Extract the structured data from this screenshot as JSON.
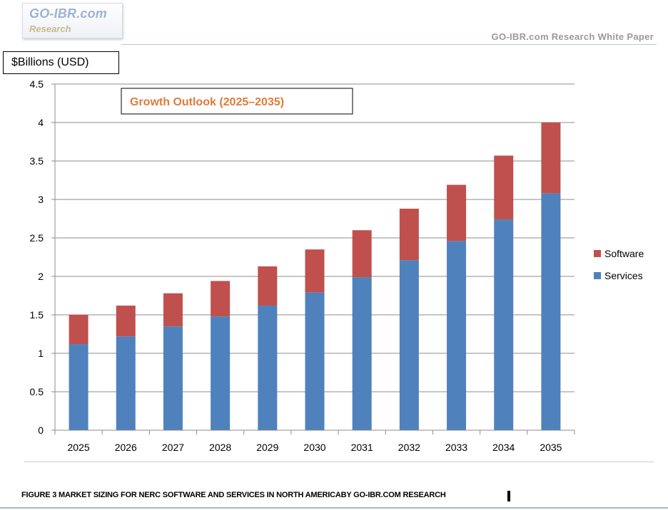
{
  "header": {
    "logo_main": "GO-IBR.com",
    "logo_sub": "Research",
    "right_text": "GO-IBR.com Research White Paper"
  },
  "caption": "FIGURE 3 MARKET SIZING FOR NERC SOFTWARE AND SERVICES IN NORTH AMERICABY GO-IBR.COM RESEARCH",
  "colors": {
    "services": "#4f81bd",
    "software": "#c0504d",
    "title_text": "#e07b39"
  },
  "chart_data": {
    "type": "bar",
    "stacked": true,
    "title": "Growth Outlook (2025–2035)",
    "ylabel": "$Billions (USD)",
    "xlabel": "",
    "ylim": [
      0,
      4.5
    ],
    "ytick_step": 0.5,
    "yticks": [
      "0",
      "0.5",
      "1",
      "1.5",
      "2",
      "2.5",
      "3",
      "3.5",
      "4",
      "4.5"
    ],
    "grid": true,
    "legend_position": "right",
    "categories": [
      "2025",
      "2026",
      "2027",
      "2028",
      "2029",
      "2030",
      "2031",
      "2032",
      "2033",
      "2034",
      "2035"
    ],
    "series": [
      {
        "name": "Services",
        "values": [
          1.12,
          1.22,
          1.35,
          1.48,
          1.62,
          1.79,
          1.99,
          2.21,
          2.46,
          2.74,
          3.08
        ]
      },
      {
        "name": "Software",
        "values": [
          0.38,
          0.4,
          0.43,
          0.46,
          0.51,
          0.56,
          0.61,
          0.67,
          0.73,
          0.83,
          0.92
        ]
      }
    ],
    "legend_order": [
      "Software",
      "Services"
    ]
  }
}
